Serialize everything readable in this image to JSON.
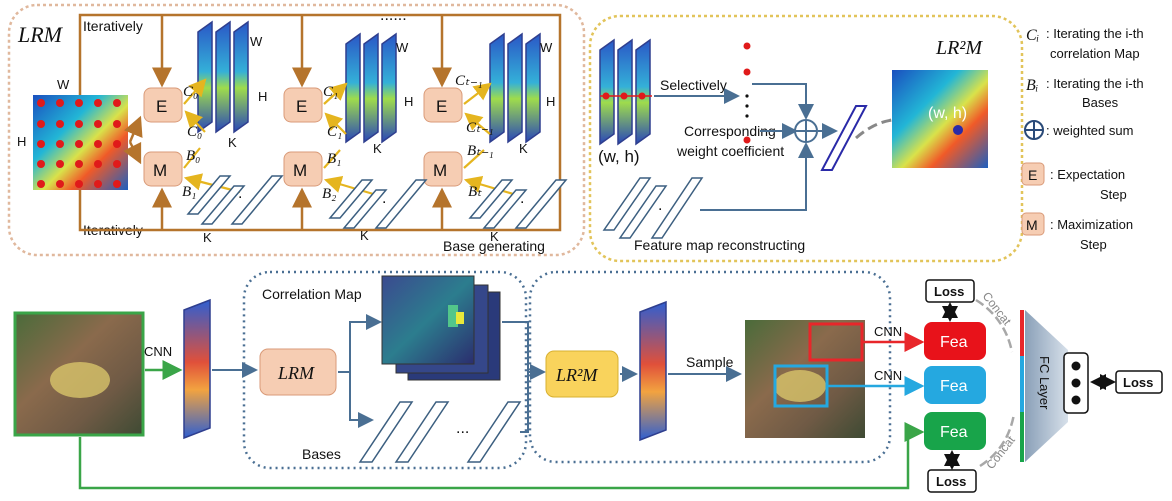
{
  "top_left": {
    "title": "LRM",
    "iteratively_top": "Iteratively",
    "iteratively_bottom": "Iteratively",
    "dots": "......",
    "w_label": "W",
    "h_label": "H",
    "k_label": "K",
    "e_label": "E",
    "m_label": "M",
    "c0": "C₀",
    "c1": "C₁",
    "ct1": "Cₜ₋₁",
    "b0": "B₀",
    "b1": "B₁",
    "b2": "B₂",
    "bt1": "Bₜ₋₁",
    "bt": "Bₜ",
    "base_generating": "Base generating"
  },
  "top_right": {
    "title": "LR²M",
    "selectively": "Selectively",
    "corresponding_1": "Corresponding",
    "corresponding_2": "weight coefficient",
    "wh_left": "(w, h)",
    "wh_right": "(w, h)",
    "reconstructing": "Feature map reconstructing"
  },
  "legend": {
    "ci_sym": "Cᵢ",
    "ci_text_1": ": Iterating the i-th",
    "ci_text_2": "correlation Map",
    "bi_sym": "Bᵢ",
    "bi_text_1": ": Iterating the i-th",
    "bi_text_2": "Bases",
    "sum_text": ": weighted sum",
    "e_sym": "E",
    "e_text_1": ": Expectation",
    "e_text_2": "Step",
    "m_sym": "M",
    "m_text_1": ": Maximization",
    "m_text_2": "Step"
  },
  "bottom": {
    "cnn_1": "CNN",
    "lrm": "LRM",
    "correlation_map": "Correlation Map",
    "bases": "Bases",
    "ellipsis": "...",
    "lr2m": "LR²M",
    "sample": "Sample",
    "cnn_2": "CNN",
    "cnn_3": "CNN",
    "fea_1": "Fea",
    "fea_2": "Fea",
    "fea_3": "Fea",
    "loss_1": "Loss",
    "loss_2": "Loss",
    "loss_3": "Loss",
    "concat_1": "Concat",
    "concat_2": "Concat",
    "fc_layer": "FC Layer"
  },
  "colors": {
    "brown": "#b5742c",
    "green": "#3aa548",
    "blue_line": "#4a6f93",
    "orange_box": "#f6cdb3",
    "yellow_box": "#f9d35c",
    "red": "#e8262a",
    "cyan": "#25a8e0",
    "fea_green": "#18a44a"
  }
}
